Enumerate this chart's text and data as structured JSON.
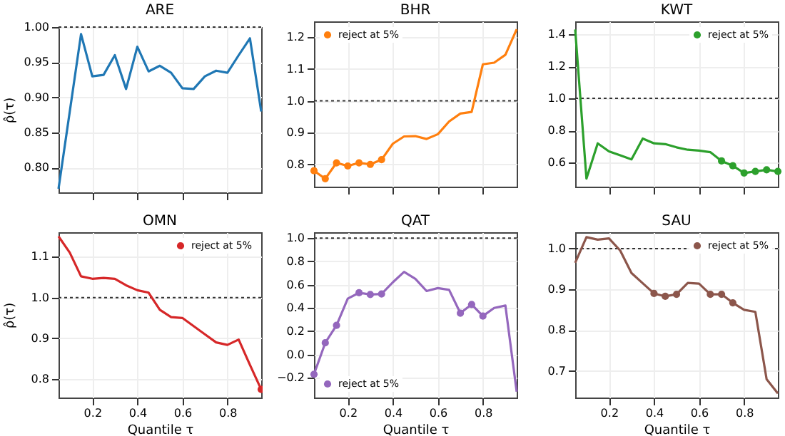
{
  "chart_data": [
    {
      "type": "line",
      "title": "ARE",
      "ylabel": "ρ̂(τ)",
      "x": [
        0.05,
        0.1,
        0.15,
        0.2,
        0.25,
        0.3,
        0.35,
        0.4,
        0.45,
        0.5,
        0.55,
        0.6,
        0.65,
        0.7,
        0.75,
        0.8,
        0.85,
        0.9,
        0.95
      ],
      "series": [
        {
          "color": "#1f77b4",
          "values": [
            0.77,
            0.88,
            0.99,
            0.93,
            0.932,
            0.96,
            0.912,
            0.972,
            0.937,
            0.945,
            0.935,
            0.913,
            0.912,
            0.93,
            0.938,
            0.935,
            0.96,
            0.984,
            0.88
          ]
        }
      ],
      "xlim": [
        0.05,
        0.95
      ],
      "xticks": [
        0.2,
        0.4,
        0.6,
        0.8
      ],
      "ylim": [
        0.765,
        1.0
      ],
      "yticks": [
        {
          "value": 0.8,
          "label": "0.80"
        },
        {
          "value": 0.85,
          "label": "0.85"
        },
        {
          "value": 0.9,
          "label": "0.90"
        },
        {
          "value": 0.95,
          "label": "0.95"
        },
        {
          "value": 1.0,
          "label": "1.00"
        }
      ],
      "ref_lines": [
        {
          "axis": "y",
          "value": 1,
          "color": "#333333",
          "line_style": "dotted"
        }
      ],
      "grid": true,
      "tick_labels": "y"
    },
    {
      "type": "line",
      "title": "BHR",
      "x": [
        0.05,
        0.1,
        0.15,
        0.2,
        0.25,
        0.3,
        0.35,
        0.4,
        0.45,
        0.5,
        0.55,
        0.6,
        0.65,
        0.7,
        0.75,
        0.8,
        0.85,
        0.9,
        0.95
      ],
      "series": [
        {
          "color": "#ff7f0e",
          "values": [
            0.78,
            0.755,
            0.805,
            0.795,
            0.805,
            0.8,
            0.815,
            0.865,
            0.888,
            0.889,
            0.88,
            0.895,
            0.935,
            0.96,
            0.965,
            1.115,
            1.12,
            1.145,
            1.225
          ]
        },
        {
          "name": "reject at 5%",
          "type": "scatter",
          "color": "#ff7f0e",
          "x": [
            0.05,
            0.1,
            0.15,
            0.2,
            0.25,
            0.3,
            0.35
          ],
          "values": [
            0.78,
            0.755,
            0.805,
            0.795,
            0.805,
            0.8,
            0.815
          ]
        }
      ],
      "xlim": [
        0.05,
        0.95
      ],
      "xticks": [
        0.2,
        0.4,
        0.6,
        0.8
      ],
      "ylim": [
        0.73,
        1.25
      ],
      "yticks": [
        0.8,
        0.9,
        {
          "value": 1.0,
          "label": "1.0"
        },
        1.1,
        1.2
      ],
      "ref_lines": [
        {
          "axis": "y",
          "value": 1,
          "color": "#333333",
          "line_style": "dotted"
        }
      ],
      "grid": true,
      "legend": "top left",
      "tick_labels": "y"
    },
    {
      "type": "line",
      "title": "KWT",
      "x": [
        0.05,
        0.1,
        0.15,
        0.2,
        0.25,
        0.3,
        0.35,
        0.4,
        0.45,
        0.5,
        0.55,
        0.6,
        0.65,
        0.7,
        0.75,
        0.8,
        0.85,
        0.9,
        0.95
      ],
      "series": [
        {
          "color": "#2ca02c",
          "values": [
            1.43,
            0.5,
            0.72,
            0.67,
            0.645,
            0.62,
            0.75,
            0.72,
            0.715,
            0.695,
            0.68,
            0.675,
            0.665,
            0.61,
            0.58,
            0.535,
            0.545,
            0.555,
            0.545
          ]
        },
        {
          "name": "reject at 5%",
          "type": "scatter",
          "color": "#2ca02c",
          "x": [
            0.7,
            0.75,
            0.8,
            0.85,
            0.9,
            0.95
          ],
          "values": [
            0.61,
            0.58,
            0.535,
            0.545,
            0.555,
            0.545
          ]
        }
      ],
      "xlim": [
        0.05,
        0.95
      ],
      "xticks": [
        0.2,
        0.4,
        0.6,
        0.8
      ],
      "ylim": [
        0.45,
        1.48
      ],
      "yticks": [
        0.6,
        0.8,
        {
          "value": 1.0,
          "label": "1.0"
        },
        1.2,
        1.4
      ],
      "ref_lines": [
        {
          "axis": "y",
          "value": 1,
          "color": "#333333",
          "line_style": "dotted"
        }
      ],
      "grid": true,
      "legend": "top right",
      "tick_labels": "y"
    },
    {
      "type": "line",
      "title": "OMN",
      "ylabel": "ρ̂(τ)",
      "xlabel": "Quantile τ",
      "x": [
        0.05,
        0.1,
        0.15,
        0.2,
        0.25,
        0.3,
        0.35,
        0.4,
        0.45,
        0.5,
        0.55,
        0.6,
        0.65,
        0.7,
        0.75,
        0.8,
        0.85,
        0.9,
        0.95
      ],
      "series": [
        {
          "color": "#d62728",
          "values": [
            1.15,
            1.11,
            1.052,
            1.046,
            1.048,
            1.046,
            1.03,
            1.018,
            1.012,
            0.97,
            0.952,
            0.95,
            0.93,
            0.91,
            0.89,
            0.884,
            0.897,
            0.835,
            0.775
          ]
        },
        {
          "name": "reject at 5%",
          "type": "scatter",
          "color": "#d62728",
          "x": [
            0.95
          ],
          "values": [
            0.775
          ]
        }
      ],
      "xlim": [
        0.05,
        0.95
      ],
      "xticks": [
        0.2,
        0.4,
        0.6,
        0.8
      ],
      "ylim": [
        0.755,
        1.16
      ],
      "yticks": [
        0.8,
        0.9,
        {
          "value": 1.0,
          "label": "1.0"
        },
        1.1
      ],
      "ref_lines": [
        {
          "axis": "y",
          "value": 1,
          "color": "#333333",
          "line_style": "dotted"
        }
      ],
      "grid": true,
      "legend": "top right"
    },
    {
      "type": "line",
      "title": "QAT",
      "xlabel": "Quantile τ",
      "x": [
        0.05,
        0.1,
        0.15,
        0.2,
        0.25,
        0.3,
        0.35,
        0.4,
        0.45,
        0.5,
        0.55,
        0.6,
        0.65,
        0.7,
        0.75,
        0.8,
        0.85,
        0.9,
        0.95
      ],
      "series": [
        {
          "color": "#9467bd",
          "values": [
            -0.17,
            0.1,
            0.25,
            0.48,
            0.53,
            0.515,
            0.52,
            0.62,
            0.71,
            0.65,
            0.545,
            0.57,
            0.555,
            0.355,
            0.43,
            0.33,
            0.4,
            0.42,
            -0.32
          ]
        },
        {
          "name": "reject at 5%",
          "type": "scatter",
          "color": "#9467bd",
          "x": [
            0.05,
            0.1,
            0.15,
            0.25,
            0.3,
            0.35,
            0.7,
            0.75,
            0.8
          ],
          "values": [
            -0.17,
            0.1,
            0.25,
            0.53,
            0.515,
            0.52,
            0.355,
            0.43,
            0.33
          ]
        }
      ],
      "xlim": [
        0.05,
        0.95
      ],
      "xticks": [
        0.2,
        0.4,
        0.6,
        0.8
      ],
      "ylim": [
        -0.37,
        1.05
      ],
      "yticks": [
        -0.2,
        {
          "value": 0,
          "label": "0.0"
        },
        0.2,
        0.4,
        0.6,
        0.8,
        {
          "value": 1.0,
          "label": "1.0"
        }
      ],
      "ref_lines": [
        {
          "axis": "y",
          "value": 1,
          "color": "#333333",
          "line_style": "dotted"
        }
      ],
      "grid": true,
      "legend": "bottom left"
    },
    {
      "type": "line",
      "title": "SAU",
      "xlabel": "Quantile τ",
      "x": [
        0.05,
        0.1,
        0.15,
        0.2,
        0.25,
        0.3,
        0.35,
        0.4,
        0.45,
        0.5,
        0.55,
        0.6,
        0.65,
        0.7,
        0.75,
        0.8,
        0.85,
        0.9,
        0.95
      ],
      "series": [
        {
          "color": "#8c564b",
          "values": [
            0.965,
            1.028,
            1.022,
            1.025,
            0.995,
            0.94,
            0.915,
            0.89,
            0.883,
            0.888,
            0.916,
            0.914,
            0.888,
            0.888,
            0.867,
            0.85,
            0.845,
            0.68,
            0.645
          ]
        },
        {
          "name": "reject at 5%",
          "type": "scatter",
          "color": "#8c564b",
          "x": [
            0.4,
            0.45,
            0.5,
            0.65,
            0.7,
            0.75
          ],
          "values": [
            0.89,
            0.883,
            0.888,
            0.888,
            0.888,
            0.867
          ]
        }
      ],
      "xlim": [
        0.05,
        0.95
      ],
      "xticks": [
        0.2,
        0.4,
        0.6,
        0.8
      ],
      "ylim": [
        0.635,
        1.04
      ],
      "yticks": [
        0.7,
        0.8,
        0.9,
        {
          "value": 1.0,
          "label": "1.0"
        }
      ],
      "ref_lines": [
        {
          "axis": "y",
          "value": 1,
          "color": "#333333",
          "line_style": "dotted"
        }
      ],
      "grid": true,
      "legend": "top right"
    }
  ]
}
